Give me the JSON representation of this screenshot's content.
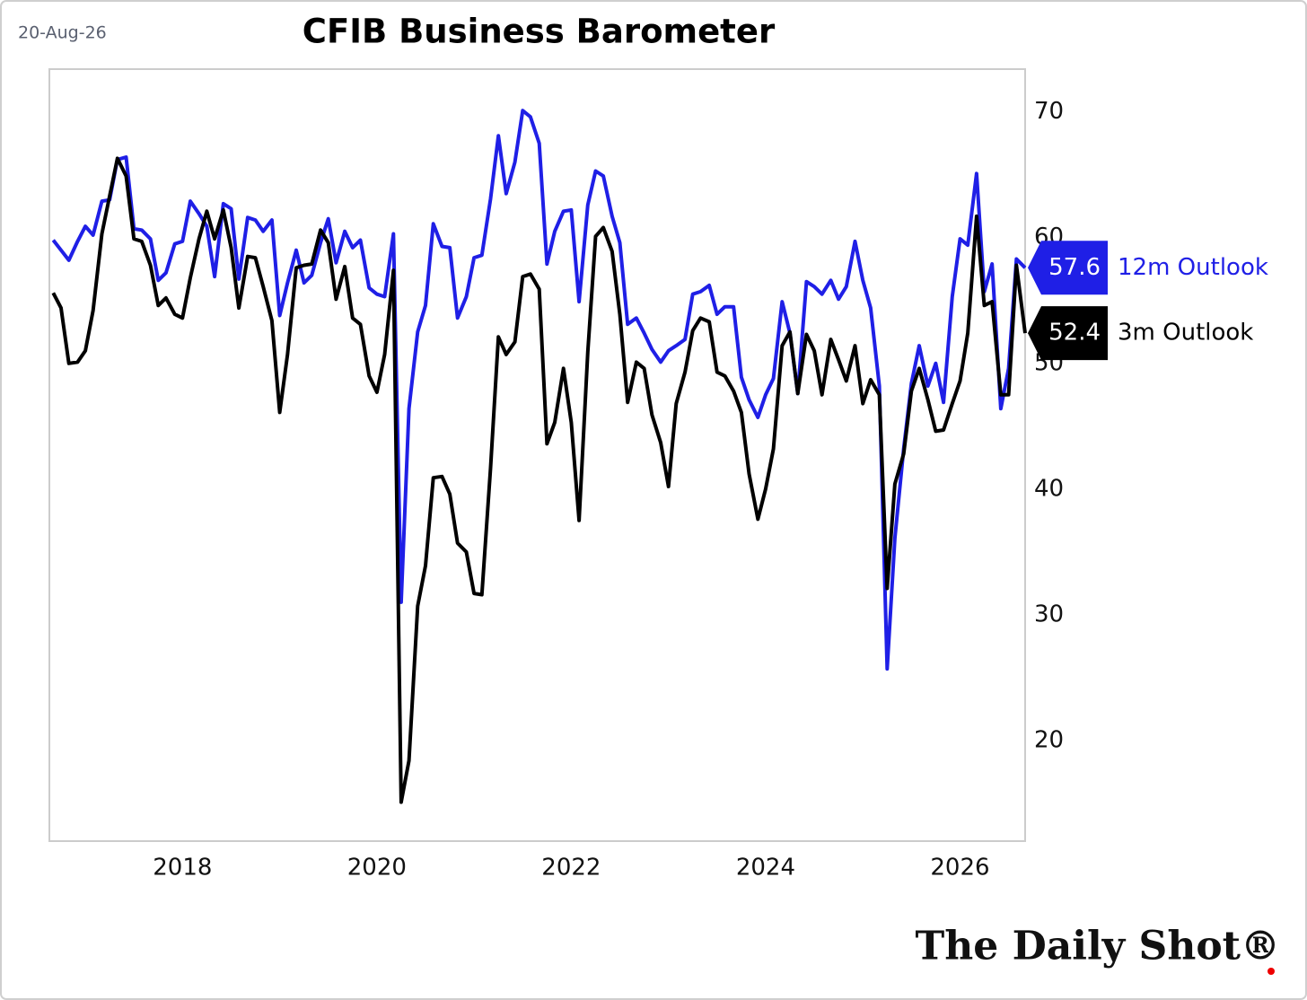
{
  "chart_data": {
    "type": "line",
    "title": "CFIB Business Barometer",
    "date": "20-Aug-26",
    "source": "The Daily Shot®",
    "grid": false,
    "xlim": [
      2016.63,
      2026.67
    ],
    "xticks": [
      2018,
      2020,
      2022,
      2024,
      2026
    ],
    "ylim": [
      12,
      73.4
    ],
    "yticks": [
      20,
      30,
      40,
      50,
      60,
      70
    ],
    "x": [
      2016.67,
      2016.75,
      2016.83,
      2016.92,
      2017.0,
      2017.08,
      2017.17,
      2017.25,
      2017.33,
      2017.42,
      2017.5,
      2017.58,
      2017.67,
      2017.75,
      2017.83,
      2017.92,
      2018.0,
      2018.08,
      2018.17,
      2018.25,
      2018.33,
      2018.42,
      2018.5,
      2018.58,
      2018.67,
      2018.75,
      2018.83,
      2018.92,
      2019.0,
      2019.08,
      2019.17,
      2019.25,
      2019.33,
      2019.42,
      2019.5,
      2019.58,
      2019.67,
      2019.75,
      2019.83,
      2019.92,
      2020.0,
      2020.08,
      2020.17,
      2020.25,
      2020.33,
      2020.42,
      2020.5,
      2020.58,
      2020.67,
      2020.75,
      2020.83,
      2020.92,
      2021.0,
      2021.08,
      2021.17,
      2021.25,
      2021.33,
      2021.42,
      2021.5,
      2021.58,
      2021.67,
      2021.75,
      2021.83,
      2021.92,
      2022.0,
      2022.08,
      2022.17,
      2022.25,
      2022.33,
      2022.42,
      2022.5,
      2022.58,
      2022.67,
      2022.75,
      2022.83,
      2022.92,
      2023.0,
      2023.08,
      2023.17,
      2023.25,
      2023.33,
      2023.42,
      2023.5,
      2023.58,
      2023.67,
      2023.75,
      2023.83,
      2023.92,
      2024.0,
      2024.08,
      2024.17,
      2024.25,
      2024.33,
      2024.42,
      2024.5,
      2024.58,
      2024.67,
      2024.75,
      2024.83,
      2024.92,
      2025.0,
      2025.08,
      2025.17,
      2025.25,
      2025.33,
      2025.42,
      2025.5,
      2025.58,
      2025.67,
      2025.75,
      2025.83,
      2025.92,
      2026.0,
      2026.08,
      2026.17,
      2026.25,
      2026.33,
      2026.42,
      2026.5,
      2026.58,
      2026.67
    ],
    "series": [
      {
        "name": "12m Outlook",
        "color": "#1f1fe6",
        "values": [
          59.8,
          59.0,
          58.2,
          59.7,
          60.9,
          60.2,
          62.9,
          63.0,
          66.2,
          66.4,
          60.7,
          60.6,
          59.9,
          56.6,
          57.2,
          59.5,
          59.7,
          62.9,
          61.9,
          60.9,
          56.9,
          62.7,
          62.3,
          56.7,
          61.6,
          61.4,
          60.5,
          61.4,
          53.8,
          56.4,
          59.0,
          56.4,
          57.0,
          59.6,
          61.5,
          58.0,
          60.5,
          59.2,
          59.8,
          56.0,
          55.5,
          55.3,
          60.3,
          31.0,
          46.4,
          52.5,
          54.6,
          61.1,
          59.3,
          59.2,
          53.6,
          55.3,
          58.4,
          58.6,
          63.1,
          68.1,
          63.5,
          66.0,
          70.1,
          69.6,
          67.5,
          57.9,
          60.5,
          62.1,
          62.2,
          54.9,
          62.6,
          65.3,
          64.9,
          61.7,
          59.6,
          53.1,
          53.6,
          52.4,
          51.1,
          50.1,
          51.0,
          51.4,
          51.9,
          55.5,
          55.7,
          56.2,
          53.9,
          54.5,
          54.5,
          48.9,
          47.1,
          45.7,
          47.5,
          48.8,
          54.9,
          52.4,
          47.6,
          56.5,
          56.1,
          55.5,
          56.6,
          55.1,
          56.1,
          59.7,
          56.6,
          54.4,
          48.2,
          25.7,
          36.1,
          43.2,
          48.4,
          51.4,
          48.2,
          50.0,
          46.9,
          55.3,
          59.9,
          59.4,
          65.1,
          55.7,
          57.9,
          46.4,
          49.6,
          58.3,
          57.6
        ]
      },
      {
        "name": "3m Outlook",
        "color": "#000000",
        "values": [
          55.6,
          54.4,
          50.0,
          50.1,
          51.0,
          54.2,
          60.3,
          63.3,
          66.3,
          64.9,
          59.9,
          59.7,
          57.8,
          54.6,
          55.2,
          53.9,
          53.6,
          56.8,
          59.9,
          62.1,
          59.9,
          62.2,
          59.2,
          54.4,
          58.5,
          58.4,
          56.1,
          53.4,
          46.1,
          50.7,
          57.6,
          57.8,
          57.9,
          60.6,
          59.6,
          55.1,
          57.7,
          53.6,
          53.1,
          49.0,
          47.7,
          50.7,
          57.4,
          15.1,
          18.4,
          30.7,
          33.9,
          40.9,
          41.0,
          39.6,
          35.7,
          35.0,
          31.7,
          31.6,
          41.7,
          52.1,
          50.7,
          51.7,
          56.9,
          57.1,
          55.9,
          43.6,
          45.3,
          49.6,
          45.3,
          37.5,
          50.9,
          60.1,
          60.8,
          58.9,
          53.9,
          46.9,
          50.1,
          49.6,
          45.9,
          43.7,
          40.2,
          46.8,
          49.3,
          52.6,
          53.6,
          53.3,
          49.3,
          49.0,
          47.8,
          46.1,
          41.2,
          37.6,
          40.0,
          43.2,
          51.4,
          52.5,
          47.6,
          52.3,
          51.0,
          47.5,
          51.9,
          50.3,
          48.6,
          51.4,
          46.8,
          48.7,
          47.5,
          32.1,
          40.4,
          42.8,
          47.8,
          49.6,
          47.1,
          44.6,
          44.7,
          46.8,
          48.6,
          52.4,
          61.7,
          54.6,
          54.9,
          47.5,
          47.5,
          57.8,
          52.4
        ]
      }
    ]
  }
}
